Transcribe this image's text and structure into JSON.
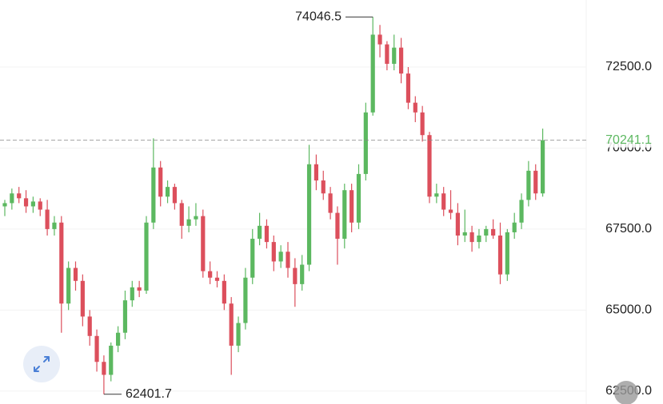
{
  "chart_data": {
    "type": "candlestick",
    "open": [
      68200,
      68300,
      68600,
      68450,
      68200,
      68350,
      68100,
      67500,
      67700,
      65200,
      66300,
      65900,
      64800,
      64200,
      63400,
      63000,
      63900,
      64300,
      65300,
      65700,
      65600,
      67700,
      69400,
      68500,
      68800,
      68300,
      67600,
      67800,
      67900,
      66200,
      66000,
      65900,
      65200,
      63900,
      64600,
      66000,
      67200,
      67600,
      67100,
      66500,
      66800,
      66300,
      65800,
      66400,
      69500,
      69000,
      68600,
      68000,
      67200,
      68700,
      67700,
      69200,
      71100,
      73500,
      73200,
      72600,
      73100,
      72300,
      71400,
      71100,
      70400,
      68500,
      68600,
      68100,
      68000,
      67300,
      67400,
      67100,
      67300,
      67500,
      67300,
      66100,
      67400,
      67700,
      68400,
      69300,
      68600
    ],
    "high": [
      68400,
      68750,
      68800,
      68700,
      68500,
      68450,
      68400,
      67900,
      67900,
      66500,
      66500,
      66100,
      65000,
      64400,
      63600,
      64000,
      64500,
      65600,
      65900,
      65900,
      67900,
      70300,
      69600,
      69000,
      68900,
      68400,
      68200,
      68300,
      68100,
      66500,
      66200,
      66100,
      65400,
      64800,
      66300,
      67500,
      68000,
      67800,
      67300,
      67000,
      67100,
      66600,
      66700,
      70100,
      69800,
      69300,
      68800,
      68200,
      68900,
      68900,
      69500,
      71400,
      74046.5,
      73800,
      73300,
      73500,
      73400,
      72500,
      71600,
      71300,
      70500,
      68900,
      68800,
      68700,
      68300,
      68100,
      67600,
      67500,
      67600,
      67800,
      67700,
      67500,
      68000,
      68600,
      69600,
      69500,
      70600
    ],
    "low": [
      67900,
      68100,
      68300,
      68000,
      68000,
      67900,
      67300,
      67300,
      64300,
      65000,
      65600,
      64500,
      63900,
      63100,
      62401.7,
      62800,
      63700,
      64100,
      65100,
      65400,
      65500,
      67500,
      68200,
      68300,
      68100,
      67200,
      67400,
      67600,
      66000,
      65800,
      65700,
      65000,
      63000,
      63700,
      64400,
      65800,
      67000,
      66900,
      66200,
      66300,
      66000,
      65100,
      65600,
      66200,
      68700,
      68400,
      67800,
      66400,
      66900,
      67400,
      67500,
      69000,
      71000,
      72800,
      72400,
      72400,
      72000,
      71200,
      70800,
      70200,
      68300,
      68300,
      67900,
      67800,
      67000,
      67100,
      66800,
      66900,
      67100,
      67200,
      65800,
      65900,
      67200,
      67500,
      68200,
      68400,
      68500
    ],
    "close": [
      68300,
      68600,
      68450,
      68200,
      68350,
      68100,
      67500,
      67700,
      65200,
      66300,
      65900,
      64800,
      64200,
      63400,
      63000,
      63900,
      64300,
      65300,
      65700,
      65600,
      67700,
      69400,
      68500,
      68800,
      68300,
      67600,
      67800,
      67900,
      66200,
      66000,
      65900,
      65200,
      63900,
      64600,
      66000,
      67200,
      67600,
      67100,
      66500,
      66800,
      66300,
      65800,
      66400,
      69500,
      69000,
      68600,
      68000,
      67200,
      68700,
      67700,
      69200,
      71100,
      73500,
      73200,
      72600,
      73100,
      72300,
      71400,
      71100,
      70400,
      68500,
      68600,
      68100,
      68000,
      67300,
      67400,
      67100,
      67300,
      67500,
      67300,
      66100,
      67400,
      67700,
      68400,
      69300,
      68600,
      70241.1
    ],
    "up_color": "#5cb860",
    "down_color": "#dc4f5c",
    "ylim": [
      62100,
      74570
    ],
    "yticks": [
      {
        "value": 62500,
        "label": "62500.0"
      },
      {
        "value": 65000,
        "label": "65000.0"
      },
      {
        "value": 67500,
        "label": "67500.0"
      },
      {
        "value": 70000,
        "label": "70000.0"
      },
      {
        "value": 72500,
        "label": "72500.0"
      }
    ],
    "grid": true
  }
}
